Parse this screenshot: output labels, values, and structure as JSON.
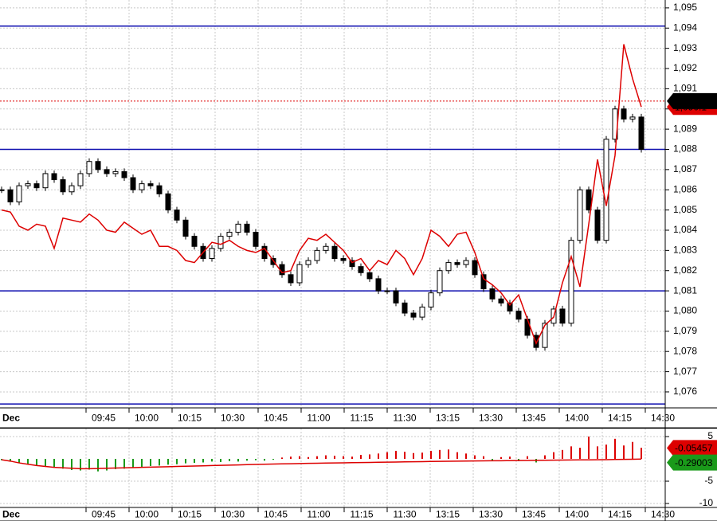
{
  "chart_data": [
    {
      "type": "candlestick",
      "x_start_label": "Dec",
      "xticks": [
        "09:45",
        "10:00",
        "10:15",
        "10:30",
        "10:45",
        "11:00",
        "11:15",
        "11:30",
        "13:15",
        "13:30",
        "13:45",
        "14:00",
        "14:15",
        "14:30"
      ],
      "ylim": [
        1075.21,
        1095.39
      ],
      "yticks": [
        {
          "value": 1076,
          "label": "1,076"
        },
        {
          "value": 1077,
          "label": "1,077"
        },
        {
          "value": 1078,
          "label": "1,078"
        },
        {
          "value": 1079,
          "label": "1,079"
        },
        {
          "value": 1080,
          "label": "1,080"
        },
        {
          "value": 1081,
          "label": "1,081"
        },
        {
          "value": 1082,
          "label": "1,082"
        },
        {
          "value": 1083,
          "label": "1,083"
        },
        {
          "value": 1084,
          "label": "1,084"
        },
        {
          "value": 1085,
          "label": "1,085"
        },
        {
          "value": 1086,
          "label": "1,086"
        },
        {
          "value": 1087,
          "label": "1,087"
        },
        {
          "value": 1088,
          "label": "1,088"
        },
        {
          "value": 1089,
          "label": "1,089"
        },
        {
          "value": 1090,
          "label": "1,090"
        },
        {
          "value": 1091,
          "label": "1,091"
        },
        {
          "value": 1092,
          "label": "1,092"
        },
        {
          "value": 1093,
          "label": "1,093"
        },
        {
          "value": 1094,
          "label": "1,094"
        },
        {
          "value": 1095,
          "label": "1,095"
        }
      ],
      "grid": true,
      "levels": [
        1094.1,
        1088.0,
        1081.0,
        1075.4
      ],
      "level_color": "#1010b0",
      "series": [
        {
          "color": "#000000",
          "style": "candle",
          "values": [
            1086.0,
            1085.4,
            1086.2,
            1086.3,
            1086.1,
            1086.8,
            1086.5,
            1085.9,
            1086.2,
            1086.8,
            1087.4,
            1087.0,
            1086.8,
            1086.9,
            1086.6,
            1086.0,
            1086.3,
            1086.2,
            1085.8,
            1085.0,
            1084.5,
            1083.7,
            1083.2,
            1082.6,
            1083.1,
            1083.7,
            1083.9,
            1084.3,
            1083.9,
            1083.2,
            1082.6,
            1082.3,
            1081.8,
            1081.4,
            1082.3,
            1082.5,
            1083.0,
            1083.2,
            1082.6,
            1082.5,
            1082.2,
            1081.9,
            1081.6,
            1081.0,
            1081.0,
            1080.4,
            1079.9,
            1079.7,
            1080.2,
            1080.9,
            1082.0,
            1082.4,
            1082.3,
            1082.5,
            1081.8,
            1081.1,
            1080.6,
            1080.4,
            1080.0,
            1079.6,
            1078.8,
            1078.2,
            1079.4,
            1080.1,
            1079.4,
            1083.5,
            1086.0,
            1085.0,
            1083.5,
            1088.5,
            1090.0,
            1089.5,
            1089.6,
            1088.0
          ]
        },
        {
          "color": "#dd0000",
          "style": "line",
          "values": [
            1085.0,
            1084.9,
            1084.2,
            1084.0,
            1084.3,
            1084.2,
            1083.1,
            1084.6,
            1084.5,
            1084.4,
            1084.8,
            1084.5,
            1084.0,
            1083.9,
            1084.4,
            1084.1,
            1083.8,
            1084.0,
            1083.2,
            1083.2,
            1083.0,
            1082.5,
            1082.4,
            1082.9,
            1083.4,
            1083.3,
            1083.5,
            1083.2,
            1083.0,
            1082.9,
            1083.1,
            1082.5,
            1081.9,
            1082.0,
            1083.0,
            1083.6,
            1083.5,
            1083.8,
            1083.4,
            1083.0,
            1082.4,
            1082.6,
            1082.0,
            1082.5,
            1082.3,
            1083.0,
            1082.6,
            1081.8,
            1082.6,
            1084.0,
            1083.7,
            1083.2,
            1083.8,
            1083.9,
            1082.9,
            1081.6,
            1081.3,
            1080.9,
            1080.3,
            1080.8,
            1079.6,
            1078.4,
            1079.3,
            1079.7,
            1081.4,
            1082.7,
            1081.2,
            1084.3,
            1087.5,
            1085.2,
            1087.7,
            1093.2,
            1091.5,
            1090.1
          ]
        }
      ],
      "price_tags": [
        {
          "value": 1090.1,
          "label": "1,090.1",
          "color": "#dd0000"
        },
        {
          "value": 1090.39,
          "label": "1,090.39",
          "color": "#000000"
        }
      ]
    },
    {
      "type": "bar",
      "x_start_label": "Dec",
      "xticks": [
        "09:45",
        "10:00",
        "10:15",
        "10:30",
        "10:45",
        "11:00",
        "11:15",
        "11:30",
        "13:15",
        "13:30",
        "13:45",
        "14:00",
        "14:15",
        "14:30"
      ],
      "ylim": [
        -10.71,
        6.79
      ],
      "yticks": [
        5,
        -5,
        -10
      ],
      "up_color": "#dd0000",
      "down_color": "#1a9a1a",
      "values": [
        -0.3,
        -0.5,
        -0.8,
        -1.2,
        -1.5,
        -1.8,
        -2.0,
        -2.2,
        -2.5,
        -2.6,
        -2.4,
        -2.8,
        -2.6,
        -2.3,
        -2.2,
        -2.0,
        -1.8,
        -1.6,
        -1.5,
        -1.3,
        -1.2,
        -1.0,
        -0.9,
        -0.8,
        -0.6,
        -0.7,
        -0.5,
        -0.6,
        -0.4,
        -0.3,
        -0.4,
        -0.2,
        0.3,
        0.5,
        0.6,
        0.4,
        0.6,
        0.8,
        0.7,
        0.6,
        0.5,
        0.9,
        1.0,
        1.2,
        1.5,
        1.8,
        1.6,
        1.3,
        1.4,
        1.8,
        2.0,
        2.1,
        1.5,
        1.2,
        0.8,
        0.6,
        -0.3,
        0.4,
        0.5,
        -0.5,
        0.6,
        -0.8,
        0.8,
        1.5,
        2.0,
        2.8,
        2.5,
        5.0,
        2.8,
        3.2,
        4.5,
        3.0,
        3.8,
        2.5
      ],
      "line": {
        "color": "#dd0000",
        "values": [
          -0.2,
          -0.5,
          -0.9,
          -1.2,
          -1.5,
          -1.7,
          -1.9,
          -2.0,
          -2.1,
          -2.2,
          -2.2,
          -2.15,
          -2.1,
          -2.05,
          -2.0,
          -1.95,
          -1.9,
          -1.85,
          -1.8,
          -1.75,
          -1.7,
          -1.65,
          -1.6,
          -1.55,
          -1.5,
          -1.45,
          -1.4,
          -1.35,
          -1.3,
          -1.25,
          -1.2,
          -1.16,
          -1.12,
          -1.08,
          -1.04,
          -1.0,
          -0.97,
          -0.94,
          -0.91,
          -0.88,
          -0.85,
          -0.82,
          -0.79,
          -0.76,
          -0.73,
          -0.7,
          -0.67,
          -0.64,
          -0.61,
          -0.58,
          -0.55,
          -0.53,
          -0.51,
          -0.49,
          -0.47,
          -0.45,
          -0.43,
          -0.41,
          -0.39,
          -0.37,
          -0.35,
          -0.33,
          -0.31,
          -0.29,
          -0.27,
          -0.25,
          -0.23,
          -0.21,
          -0.19,
          -0.17,
          -0.14,
          -0.11,
          -0.08,
          -0.05
        ]
      },
      "value_tags": [
        {
          "value": -0.05457,
          "color": "#dd0000"
        },
        {
          "value": -0.29003,
          "color": "#1a9a1a"
        }
      ]
    }
  ]
}
